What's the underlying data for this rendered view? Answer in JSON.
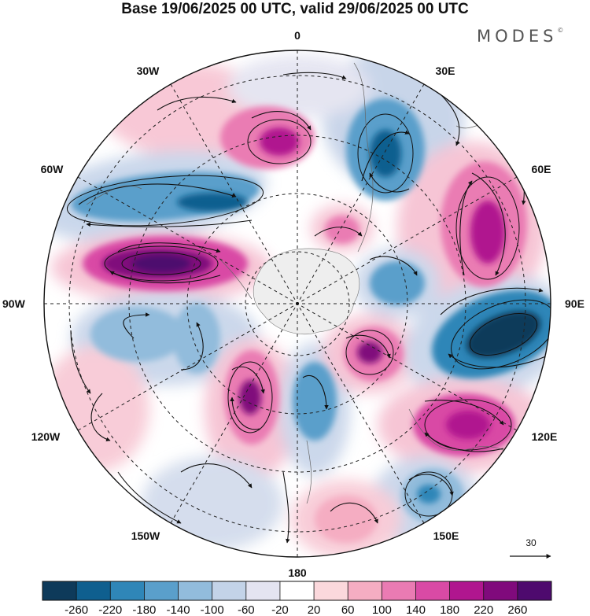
{
  "title": "Base 19/06/2025 00 UTC, valid 29/06/2025 00 UTC",
  "brand": "MODES",
  "brand_mark": "©",
  "lon_labels": {
    "l0": "0",
    "l30e": "30E",
    "l60e": "60E",
    "l90e": "90E",
    "l120e": "120E",
    "l150e": "150E",
    "l180": "180",
    "l150w": "150W",
    "l120w": "120W",
    "l90w": "90W",
    "l60w": "60W",
    "l30w": "30W"
  },
  "vector_reference": "30",
  "colorbar": {
    "labels": [
      "-260",
      "-220",
      "-180",
      "-140",
      "-100",
      "-60",
      "-20",
      "20",
      "60",
      "100",
      "140",
      "180",
      "220",
      "260"
    ],
    "colors": [
      "#0e3a5a",
      "#0f5f8f",
      "#2f86b8",
      "#5a9fcb",
      "#92bcdc",
      "#c3d3e8",
      "#e4e4f1",
      "#ffffff",
      "#fbd8dc",
      "#f5adc2",
      "#ea7bb3",
      "#d94aa5",
      "#b0168f",
      "#800a7c",
      "#4e0a6e"
    ]
  },
  "colors": {
    "land": "#eeeeee",
    "background": "#ffffff"
  }
}
